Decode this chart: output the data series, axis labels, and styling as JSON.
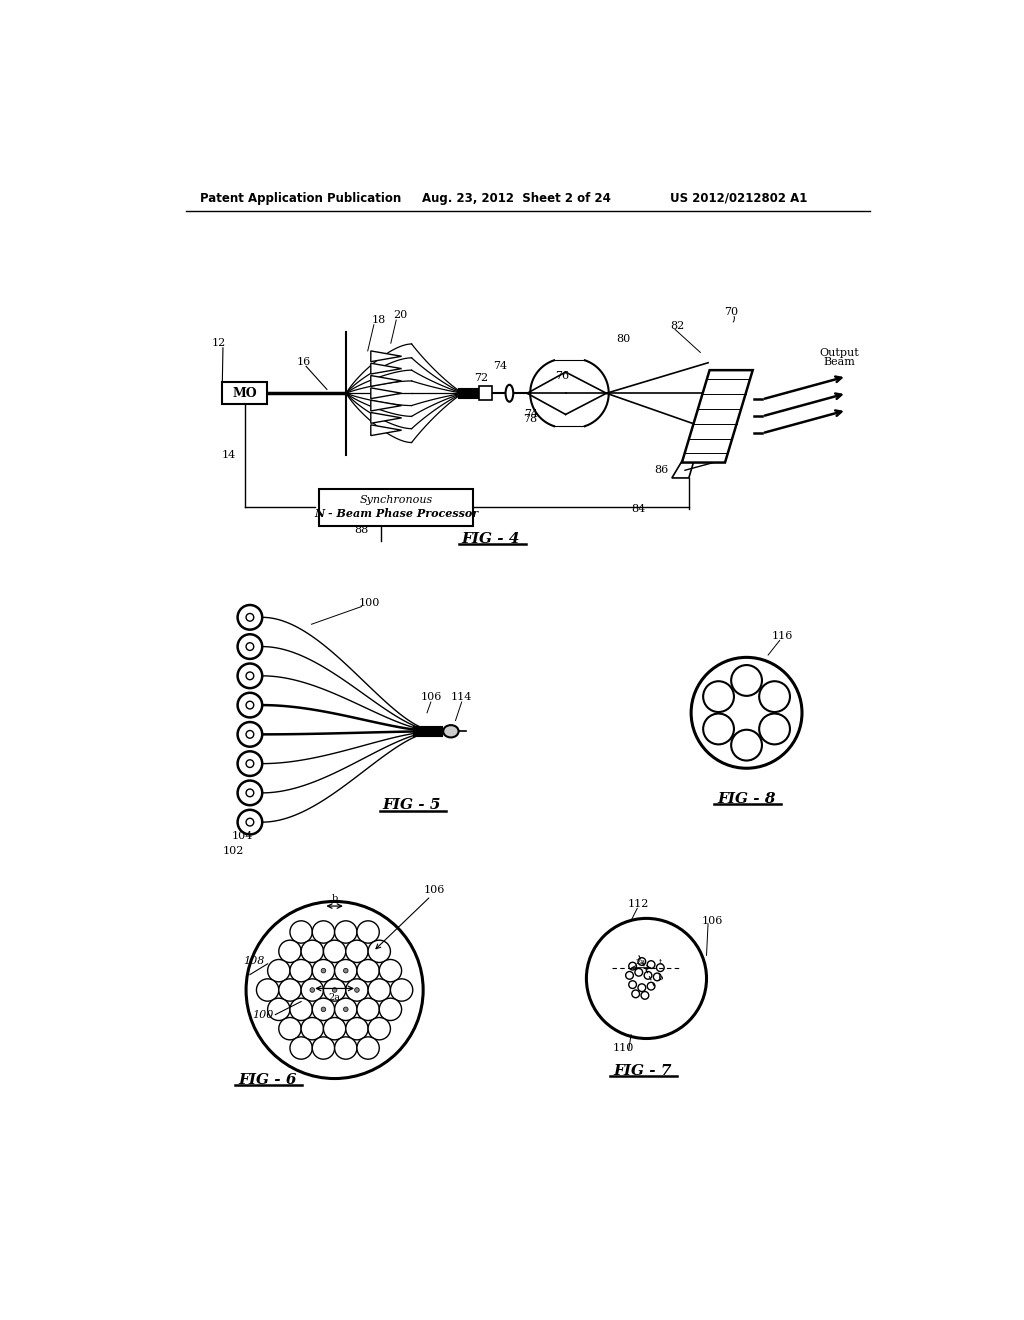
{
  "bg_color": "#ffffff",
  "lc": "#000000",
  "header_left": "Patent Application Publication",
  "header_mid": "Aug. 23, 2012  Sheet 2 of 24",
  "header_right": "US 2012/0212802 A1"
}
